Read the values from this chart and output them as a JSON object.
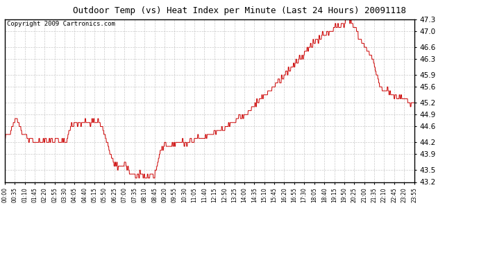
{
  "title": "Outdoor Temp (vs) Heat Index per Minute (Last 24 Hours) 20091118",
  "copyright": "Copyright 2009 Cartronics.com",
  "line_color": "#cc0000",
  "background_color": "#ffffff",
  "grid_color": "#bbbbbb",
  "ylim": [
    43.2,
    47.3
  ],
  "yticks": [
    43.2,
    43.5,
    43.9,
    44.2,
    44.6,
    44.9,
    45.2,
    45.6,
    45.9,
    46.3,
    46.6,
    47.0,
    47.3
  ],
  "xtick_labels": [
    "00:00",
    "00:35",
    "01:10",
    "01:45",
    "02:20",
    "02:55",
    "03:30",
    "04:05",
    "04:40",
    "05:15",
    "05:50",
    "06:25",
    "07:00",
    "07:35",
    "08:10",
    "08:45",
    "09:20",
    "09:55",
    "10:30",
    "11:05",
    "11:40",
    "12:15",
    "12:50",
    "13:25",
    "14:00",
    "14:35",
    "15:10",
    "15:45",
    "16:20",
    "16:55",
    "17:30",
    "18:05",
    "18:40",
    "19:15",
    "19:50",
    "20:25",
    "21:00",
    "21:35",
    "22:10",
    "22:45",
    "23:20",
    "23:55"
  ],
  "keypoints_t": [
    0.0,
    0.25,
    0.42,
    0.58,
    0.67,
    0.75,
    0.92,
    1.08,
    1.25,
    1.42,
    1.58,
    1.75,
    1.92,
    2.08,
    2.25,
    2.42,
    2.58,
    2.75,
    2.92,
    3.08,
    3.25,
    3.42,
    3.58,
    3.75,
    3.92,
    4.08,
    4.25,
    4.42,
    4.58,
    4.67,
    4.75,
    4.83,
    4.92,
    5.08,
    5.17,
    5.25,
    5.33,
    5.42,
    5.5,
    5.58,
    5.67,
    5.75,
    5.83,
    6.0,
    6.17,
    6.33,
    6.5,
    6.67,
    6.75,
    6.83,
    7.0,
    7.08,
    7.17,
    7.25,
    7.33,
    7.42,
    7.5,
    7.58,
    7.67,
    7.75,
    7.83,
    7.92,
    8.0,
    8.08,
    8.17,
    8.25,
    8.33,
    8.42,
    8.5,
    8.58,
    8.67,
    8.75,
    8.83,
    8.92,
    9.0,
    9.08,
    9.17,
    9.25,
    9.33,
    9.5,
    9.67,
    9.83,
    10.0,
    10.17,
    10.33,
    10.5,
    10.67,
    10.83,
    11.0,
    11.17,
    11.33,
    11.5,
    11.67,
    11.83,
    12.0,
    12.17,
    12.33,
    12.5,
    12.67,
    12.83,
    13.0,
    13.17,
    13.33,
    13.5,
    13.67,
    13.83,
    14.0,
    14.17,
    14.33,
    14.5,
    14.67,
    14.83,
    15.0,
    15.17,
    15.33,
    15.5,
    15.67,
    15.83,
    16.0,
    16.17,
    16.33,
    16.5,
    16.67,
    16.83,
    17.0,
    17.17,
    17.33,
    17.5,
    17.67,
    17.83,
    18.0,
    18.17,
    18.33,
    18.5,
    18.67,
    18.83,
    19.0,
    19.17,
    19.33,
    19.5,
    19.67,
    19.83,
    20.0,
    20.08,
    20.17,
    20.25,
    20.33,
    20.42,
    20.5,
    20.67,
    20.83,
    21.0,
    21.17,
    21.33,
    21.5,
    21.67,
    21.83,
    22.0,
    22.17,
    22.33,
    22.5,
    22.67,
    22.83,
    23.0,
    23.17,
    23.33,
    23.5,
    23.67,
    23.83,
    24.0
  ],
  "keypoints_v": [
    44.3,
    44.4,
    44.6,
    44.75,
    44.8,
    44.7,
    44.5,
    44.4,
    44.35,
    44.25,
    44.3,
    44.2,
    44.25,
    44.3,
    44.2,
    44.25,
    44.2,
    44.25,
    44.2,
    44.25,
    44.2,
    44.25,
    44.2,
    44.5,
    44.6,
    44.7,
    44.65,
    44.7,
    44.65,
    44.7,
    44.75,
    44.7,
    44.65,
    44.7,
    44.75,
    44.7,
    44.65,
    44.7,
    44.75,
    44.65,
    44.6,
    44.5,
    44.4,
    44.2,
    43.9,
    43.7,
    43.6,
    43.55,
    43.58,
    43.6,
    43.65,
    43.7,
    43.6,
    43.55,
    43.45,
    43.4,
    43.42,
    43.38,
    43.35,
    43.38,
    43.4,
    43.42,
    43.38,
    43.35,
    43.32,
    43.3,
    43.32,
    43.35,
    43.4,
    43.42,
    43.38,
    43.32,
    43.5,
    43.65,
    43.8,
    43.9,
    44.0,
    44.05,
    44.1,
    44.15,
    44.1,
    44.15,
    44.2,
    44.18,
    44.22,
    44.2,
    44.18,
    44.22,
    44.25,
    44.28,
    44.32,
    44.3,
    44.32,
    44.35,
    44.38,
    44.42,
    44.45,
    44.5,
    44.52,
    44.55,
    44.6,
    44.65,
    44.7,
    44.75,
    44.8,
    44.85,
    44.9,
    44.95,
    45.0,
    45.1,
    45.15,
    45.2,
    45.28,
    45.35,
    45.45,
    45.52,
    45.6,
    45.65,
    45.72,
    45.8,
    45.88,
    45.95,
    46.02,
    46.1,
    46.18,
    46.25,
    46.35,
    46.42,
    46.5,
    46.58,
    46.65,
    46.72,
    46.8,
    46.85,
    46.9,
    46.95,
    47.0,
    47.05,
    47.08,
    47.12,
    47.15,
    47.18,
    47.25,
    47.3,
    47.28,
    47.25,
    47.2,
    47.15,
    47.1,
    46.9,
    46.75,
    46.65,
    46.55,
    46.45,
    46.35,
    46.1,
    45.8,
    45.6,
    45.52,
    45.55,
    45.48,
    45.42,
    45.35,
    45.28,
    45.32,
    45.28,
    45.25,
    45.22,
    45.18,
    45.15
  ],
  "title_fontsize": 9,
  "copyright_fontsize": 6.5,
  "ytick_fontsize": 7.5,
  "xtick_fontsize": 5.5
}
